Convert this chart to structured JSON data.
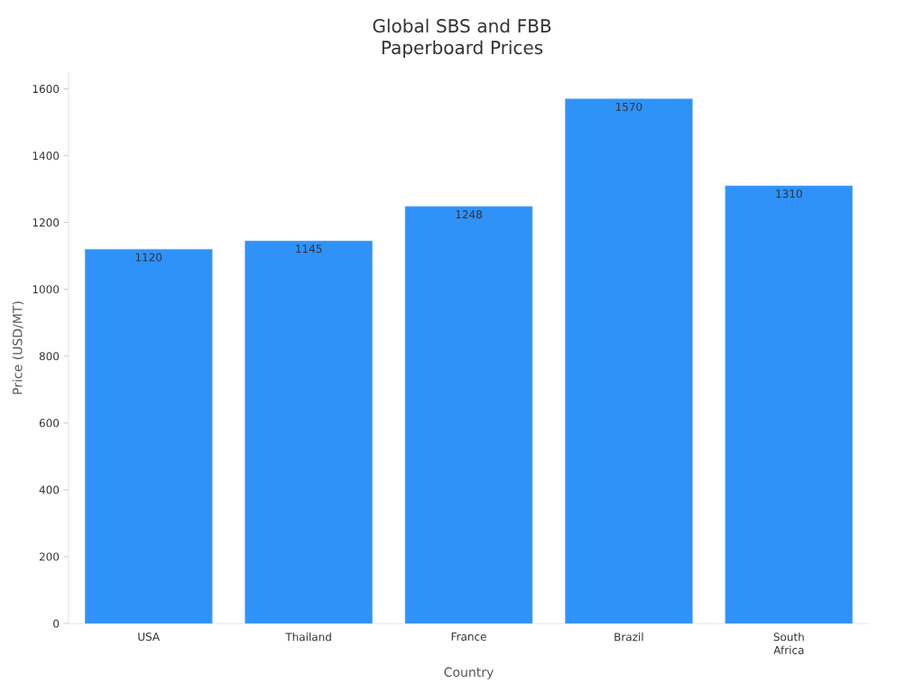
{
  "chart_data": {
    "type": "bar",
    "title": "Global SBS and FBB Paperboard Prices",
    "xlabel": "Country",
    "ylabel": "Price (USD/MT)",
    "categories": [
      "USA",
      "Thailand",
      "France",
      "Brazil",
      "South Africa"
    ],
    "values": [
      1120,
      1145,
      1248,
      1570,
      1310
    ],
    "color": "#2f92f9",
    "ylim": [
      0,
      1650
    ],
    "yticks": [
      0,
      200,
      400,
      600,
      800,
      1000,
      1200,
      1400,
      1600
    ],
    "data_labels": true
  }
}
